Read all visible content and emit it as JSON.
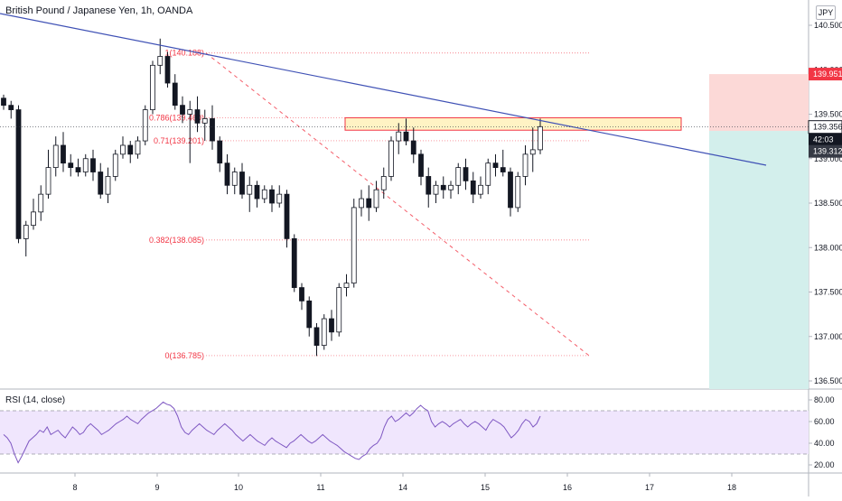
{
  "header": {
    "title": "British Pound / Japanese Yen, 1h, OANDA",
    "currency": "JPY"
  },
  "price_scale": {
    "ticks": [
      "140.500",
      "140.000",
      "139.500",
      "139.000",
      "138.500",
      "138.000",
      "137.500",
      "137.000",
      "136.500"
    ],
    "target_label": "139.951",
    "current_label": "139.356",
    "countdown_label": "42:03",
    "stop_label": "139.312",
    "target_color": "#f23645",
    "current_color": "#131722",
    "stop_color": "#363a45"
  },
  "fibonacci": {
    "levels": [
      {
        "label": "1(140.188)",
        "value": 140.188
      },
      {
        "label": "0.786(139.460)",
        "value": 139.46
      },
      {
        "label": "0.71(139.201)",
        "value": 139.201
      },
      {
        "label": "0.382(138.085)",
        "value": 138.085
      },
      {
        "label": "0(136.785)",
        "value": 136.785
      }
    ],
    "color": "#f23645"
  },
  "rsi": {
    "title": "RSI (14, close)",
    "ticks": [
      "80.00",
      "60.00",
      "40.00",
      "20.00"
    ],
    "upper_band": 70,
    "lower_band": 30,
    "line_color": "#7e57c2",
    "band_fill": "#f0e6fd",
    "values": [
      48,
      45,
      40,
      30,
      22,
      28,
      35,
      42,
      45,
      48,
      52,
      50,
      55,
      48,
      50,
      52,
      48,
      45,
      50,
      55,
      52,
      48,
      50,
      55,
      58,
      55,
      52,
      48,
      50,
      52,
      55,
      58,
      60,
      62,
      65,
      62,
      60,
      58,
      62,
      65,
      68,
      70,
      72,
      75,
      78,
      76,
      75,
      72,
      65,
      55,
      50,
      48,
      52,
      55,
      58,
      55,
      52,
      50,
      48,
      52,
      55,
      58,
      55,
      52,
      48,
      45,
      42,
      45,
      48,
      45,
      42,
      40,
      38,
      42,
      45,
      42,
      40,
      38,
      36,
      40,
      42,
      45,
      48,
      45,
      42,
      40,
      42,
      45,
      48,
      45,
      42,
      40,
      38,
      35,
      32,
      30,
      28,
      26,
      25,
      28,
      30,
      35,
      38,
      40,
      45,
      55,
      62,
      65,
      60,
      62,
      65,
      68,
      65,
      68,
      72,
      75,
      72,
      70,
      60,
      55,
      58,
      60,
      58,
      55,
      58,
      60,
      62,
      58,
      55,
      58,
      60,
      58,
      55,
      52,
      58,
      62,
      60,
      58,
      55,
      50,
      45,
      48,
      52,
      58,
      62,
      60,
      55,
      58,
      65
    ]
  },
  "chart_data": {
    "type": "candlestick",
    "title": "British Pound / Japanese Yen, 1h, OANDA",
    "x_ticks": [
      "8",
      "9",
      "10",
      "11",
      "14",
      "15",
      "16",
      "17",
      "18"
    ],
    "ylim": [
      136.45,
      140.62
    ],
    "y_ticks": [
      140.5,
      140.0,
      139.5,
      139.0,
      138.5,
      138.0,
      137.5,
      137.0,
      136.5
    ],
    "trendline": {
      "from": [
        0,
        140.62
      ],
      "to": [
        18.8,
        138.95
      ],
      "color": "#3f51b5"
    },
    "fib_diagonal": {
      "from": [
        9.55,
        140.188
      ],
      "to": [
        16.2,
        136.785
      ],
      "color": "#f23645"
    },
    "resistance_zone": {
      "x_start": 11.3,
      "x_end": 17.3,
      "y_low": 139.32,
      "y_high": 139.46,
      "fill": "#fff3c4",
      "border": "#f23645"
    },
    "position": {
      "x_start": 17.7,
      "x_end": 18.9,
      "entry": 139.312,
      "target": 139.951,
      "stop_bottom": 136.45,
      "profit_fill": "#fcd9d7",
      "loss_fill": "#d3efec"
    },
    "candles": [
      [
        139.68,
        139.72,
        139.55,
        139.6
      ],
      [
        139.6,
        139.65,
        139.45,
        139.55
      ],
      [
        139.55,
        139.6,
        138.05,
        138.1
      ],
      [
        138.1,
        138.3,
        137.9,
        138.25
      ],
      [
        138.25,
        138.55,
        138.2,
        138.4
      ],
      [
        138.4,
        138.7,
        138.3,
        138.6
      ],
      [
        138.6,
        139.1,
        138.55,
        138.9
      ],
      [
        138.9,
        139.25,
        138.8,
        139.15
      ],
      [
        139.15,
        139.3,
        138.85,
        138.95
      ],
      [
        138.95,
        139.05,
        138.8,
        138.9
      ],
      [
        138.9,
        139.0,
        138.8,
        138.85
      ],
      [
        138.85,
        139.05,
        138.8,
        139.0
      ],
      [
        139.0,
        139.1,
        138.75,
        138.85
      ],
      [
        138.85,
        138.95,
        138.55,
        138.6
      ],
      [
        138.6,
        138.9,
        138.5,
        138.8
      ],
      [
        138.8,
        139.1,
        138.75,
        139.05
      ],
      [
        139.05,
        139.25,
        139.0,
        139.15
      ],
      [
        139.15,
        139.2,
        138.95,
        139.05
      ],
      [
        139.05,
        139.25,
        139.0,
        139.2
      ],
      [
        139.2,
        139.6,
        139.15,
        139.55
      ],
      [
        139.55,
        140.1,
        139.5,
        140.05
      ],
      [
        140.05,
        140.35,
        139.95,
        140.15
      ],
      [
        140.15,
        140.2,
        139.8,
        139.85
      ],
      [
        139.85,
        139.95,
        139.55,
        139.6
      ],
      [
        139.6,
        139.7,
        139.4,
        139.5
      ],
      [
        139.5,
        139.65,
        138.95,
        139.55
      ],
      [
        139.55,
        139.7,
        139.3,
        139.4
      ],
      [
        139.4,
        139.55,
        139.2,
        139.45
      ],
      [
        139.45,
        139.6,
        139.1,
        139.2
      ],
      [
        139.2,
        139.25,
        138.85,
        138.95
      ],
      [
        138.95,
        139.05,
        138.6,
        138.7
      ],
      [
        138.7,
        138.9,
        138.6,
        138.85
      ],
      [
        138.85,
        138.95,
        138.55,
        138.6
      ],
      [
        138.6,
        138.8,
        138.4,
        138.7
      ],
      [
        138.7,
        138.75,
        138.45,
        138.55
      ],
      [
        138.55,
        138.7,
        138.5,
        138.65
      ],
      [
        138.65,
        138.7,
        138.4,
        138.5
      ],
      [
        138.5,
        138.7,
        138.45,
        138.6
      ],
      [
        138.6,
        138.65,
        138.0,
        138.1
      ],
      [
        138.1,
        138.15,
        137.5,
        137.55
      ],
      [
        137.55,
        137.6,
        137.3,
        137.4
      ],
      [
        137.4,
        137.45,
        137.0,
        137.1
      ],
      [
        137.1,
        137.15,
        136.78,
        136.9
      ],
      [
        136.9,
        137.25,
        136.85,
        137.2
      ],
      [
        137.2,
        137.3,
        136.95,
        137.05
      ],
      [
        137.05,
        137.6,
        137.0,
        137.55
      ],
      [
        137.55,
        137.7,
        137.45,
        137.6
      ],
      [
        137.6,
        138.55,
        137.55,
        138.45
      ],
      [
        138.45,
        138.65,
        138.35,
        138.55
      ],
      [
        138.55,
        138.7,
        138.3,
        138.45
      ],
      [
        138.45,
        138.75,
        138.4,
        138.65
      ],
      [
        138.65,
        138.9,
        138.55,
        138.8
      ],
      [
        138.8,
        139.25,
        138.75,
        139.2
      ],
      [
        139.2,
        139.4,
        139.05,
        139.3
      ],
      [
        139.3,
        139.45,
        139.15,
        139.2
      ],
      [
        139.2,
        139.35,
        138.95,
        139.05
      ],
      [
        139.05,
        139.1,
        138.7,
        138.8
      ],
      [
        138.8,
        138.9,
        138.45,
        138.6
      ],
      [
        138.6,
        138.75,
        138.5,
        138.7
      ],
      [
        138.7,
        138.8,
        138.55,
        138.65
      ],
      [
        138.65,
        138.75,
        138.55,
        138.7
      ],
      [
        138.7,
        138.95,
        138.6,
        138.9
      ],
      [
        138.9,
        139.0,
        138.65,
        138.75
      ],
      [
        138.75,
        138.85,
        138.5,
        138.6
      ],
      [
        138.6,
        138.8,
        138.55,
        138.7
      ],
      [
        138.7,
        139.0,
        138.6,
        138.95
      ],
      [
        138.95,
        139.05,
        138.8,
        138.9
      ],
      [
        138.9,
        139.1,
        138.8,
        138.85
      ],
      [
        138.85,
        138.9,
        138.35,
        138.45
      ],
      [
        138.45,
        138.85,
        138.4,
        138.8
      ],
      [
        138.8,
        139.15,
        138.7,
        139.05
      ],
      [
        139.05,
        139.35,
        138.85,
        139.1
      ],
      [
        139.1,
        139.45,
        139.05,
        139.36
      ]
    ]
  }
}
